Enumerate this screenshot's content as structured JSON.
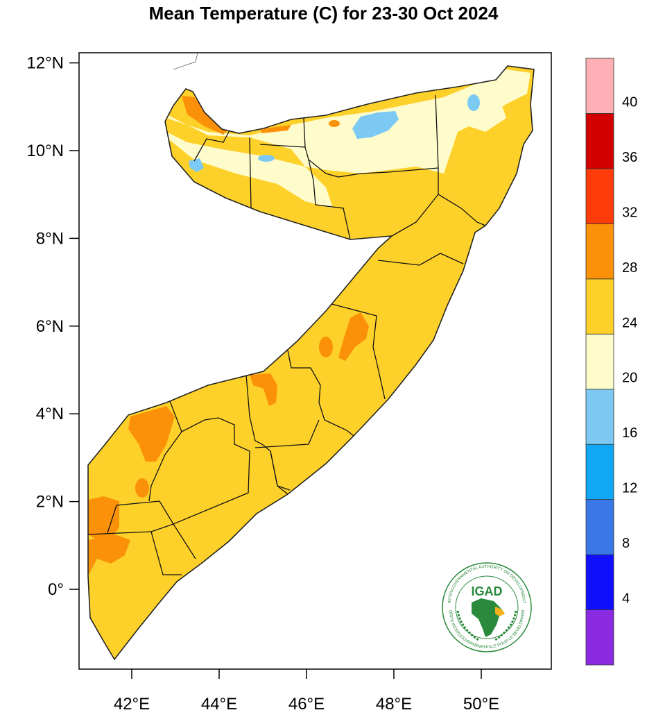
{
  "title": "Mean Temperature (C) for 23-30 Oct 2024",
  "map": {
    "lon_range": [
      40.9,
      51.6
    ],
    "lat_range": [
      -1.9,
      12.2
    ],
    "lat_ticks": [
      {
        "value": 12,
        "label": "12°N"
      },
      {
        "value": 10,
        "label": "10°N"
      },
      {
        "value": 8,
        "label": "8°N"
      },
      {
        "value": 6,
        "label": "6°N"
      },
      {
        "value": 4,
        "label": "4°N"
      },
      {
        "value": 2,
        "label": "2°N"
      },
      {
        "value": 0,
        "label": "0°"
      }
    ],
    "lon_ticks": [
      {
        "value": 42,
        "label": "42°E"
      },
      {
        "value": 44,
        "label": "44°E"
      },
      {
        "value": 46,
        "label": "46°E"
      },
      {
        "value": 48,
        "label": "48°E"
      },
      {
        "value": 50,
        "label": "50°E"
      }
    ]
  },
  "colorbar": {
    "bins": [
      {
        "from": 0,
        "to": 4,
        "color": "#8a2be2"
      },
      {
        "from": 4,
        "to": 8,
        "color": "#1010ff"
      },
      {
        "from": 8,
        "to": 12,
        "color": "#3a78e8"
      },
      {
        "from": 12,
        "to": 16,
        "color": "#10a8f5"
      },
      {
        "from": 16,
        "to": 20,
        "color": "#7ccaf4"
      },
      {
        "from": 20,
        "to": 24,
        "color": "#fffccc"
      },
      {
        "from": 24,
        "to": 28,
        "color": "#fdd12a"
      },
      {
        "from": 28,
        "to": 32,
        "color": "#fb9108"
      },
      {
        "from": 32,
        "to": 36,
        "color": "#ff3b0a"
      },
      {
        "from": 36,
        "to": 40,
        "color": "#d20000"
      },
      {
        "from": 40,
        "to": 44,
        "color": "#ffb0b6"
      }
    ],
    "labels": [
      "4",
      "8",
      "12",
      "16",
      "20",
      "24",
      "28",
      "32",
      "36",
      "40"
    ]
  },
  "logo": {
    "acronym": "IGAD",
    "ring_top": "INTERGOVERNMENTAL AUTHORITY ON DEVELOPMENT",
    "ring_bottom": "AUTORITE INTERGOUVERNEMENTALE POUR LE DEVELOPPEMENT"
  }
}
